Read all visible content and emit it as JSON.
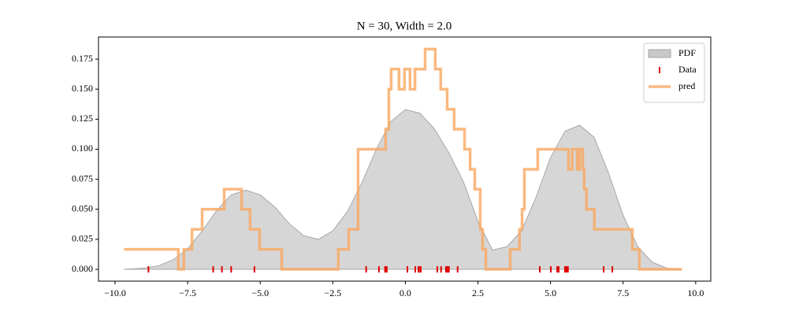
{
  "chart_data": {
    "type": "density",
    "title": "N = 30, Width = 2.0",
    "xlim": [
      -10.57,
      10.52
    ],
    "ylim": [
      -0.0098,
      0.1934
    ],
    "xticks": [
      {
        "value": -10,
        "label": "−10.0"
      },
      {
        "value": -7.5,
        "label": "−7.5"
      },
      {
        "value": -5,
        "label": "−5.0"
      },
      {
        "value": -2.5,
        "label": "−2.5"
      },
      {
        "value": 0,
        "label": "0.0"
      },
      {
        "value": 2.5,
        "label": "2.5"
      },
      {
        "value": 5,
        "label": "5.0"
      },
      {
        "value": 7.5,
        "label": "7.5"
      },
      {
        "value": 10,
        "label": "10.0"
      }
    ],
    "yticks": [
      {
        "value": 0,
        "label": "0.000"
      },
      {
        "value": 0.025,
        "label": "0.025"
      },
      {
        "value": 0.05,
        "label": "0.050"
      },
      {
        "value": 0.075,
        "label": "0.075"
      },
      {
        "value": 0.1,
        "label": "0.100"
      },
      {
        "value": 0.125,
        "label": "0.125"
      },
      {
        "value": 0.15,
        "label": "0.150"
      },
      {
        "value": 0.175,
        "label": "0.175"
      }
    ],
    "legend": "upper right",
    "series": [
      {
        "name": "PDF",
        "type": "area",
        "color": "#c8c8c8",
        "x": [
          -9.7,
          -9,
          -8.5,
          -8,
          -7.5,
          -7,
          -6.5,
          -6,
          -5.5,
          -5,
          -4.5,
          -4,
          -3.5,
          -3,
          -2.5,
          -2,
          -1.5,
          -1,
          -0.5,
          0,
          0.5,
          1,
          1.5,
          2,
          2.5,
          3,
          3.5,
          4,
          4.5,
          5,
          5.5,
          6,
          6.5,
          7,
          7.5,
          8,
          8.5,
          9,
          9.5
        ],
        "values": [
          0.0,
          0.001,
          0.003,
          0.008,
          0.017,
          0.032,
          0.049,
          0.062,
          0.066,
          0.062,
          0.052,
          0.038,
          0.028,
          0.025,
          0.032,
          0.048,
          0.072,
          0.1,
          0.123,
          0.133,
          0.13,
          0.117,
          0.097,
          0.073,
          0.04,
          0.016,
          0.019,
          0.032,
          0.06,
          0.093,
          0.115,
          0.12,
          0.11,
          0.08,
          0.045,
          0.019,
          0.006,
          0.001,
          0.0
        ]
      },
      {
        "name": "Data",
        "type": "rug",
        "color": "#e00000",
        "values": [
          -8.85,
          -6.62,
          -6.32,
          -6.0,
          -5.2,
          -1.35,
          -0.91,
          -0.7,
          -0.69,
          -0.64,
          0.07,
          0.34,
          0.45,
          0.47,
          0.53,
          1.1,
          1.23,
          1.4,
          1.45,
          1.5,
          1.8,
          4.63,
          5.01,
          5.23,
          5.28,
          5.5,
          5.55,
          5.6,
          6.83,
          7.13
        ]
      },
      {
        "name": "pred",
        "type": "step",
        "color": "#f9a860",
        "x": [
          -9.69,
          -7.82,
          -7.82,
          -7.63,
          -7.63,
          -7.35,
          -7.35,
          -7.0,
          -7.0,
          -6.24,
          -6.24,
          -5.64,
          -5.64,
          -5.35,
          -5.35,
          -5.02,
          -5.02,
          -4.26,
          -4.26,
          -2.31,
          -2.31,
          -1.95,
          -1.95,
          -1.63,
          -1.63,
          -0.68,
          -0.68,
          -0.57,
          -0.57,
          -0.49,
          -0.49,
          -0.22,
          -0.22,
          -0.03,
          -0.03,
          0.16,
          0.16,
          0.33,
          0.33,
          0.68,
          0.68,
          1.03,
          1.03,
          1.22,
          1.22,
          1.44,
          1.44,
          1.68,
          1.68,
          2.04,
          2.04,
          2.23,
          2.23,
          2.39,
          2.39,
          2.58,
          2.58,
          2.66,
          2.66,
          2.77,
          2.77,
          3.61,
          3.61,
          3.93,
          3.93,
          4.02,
          4.02,
          4.1,
          4.1,
          4.56,
          4.56,
          5.62,
          5.62,
          5.75,
          5.75,
          5.92,
          5.92,
          6.0,
          6.0,
          6.11,
          6.11,
          6.16,
          6.16,
          6.24,
          6.24,
          6.51,
          6.51,
          7.82,
          7.82,
          8.06,
          8.06,
          9.53
        ],
        "values": [
          0.0167,
          0.0167,
          0,
          0,
          0.0167,
          0.0167,
          0.0333,
          0.0333,
          0.05,
          0.05,
          0.0667,
          0.0667,
          0.05,
          0.05,
          0.0333,
          0.0333,
          0.0167,
          0.0167,
          0,
          0,
          0.0167,
          0.0167,
          0.0333,
          0.0333,
          0.1,
          0.1,
          0.1167,
          0.1167,
          0.15,
          0.15,
          0.1667,
          0.1667,
          0.15,
          0.15,
          0.1667,
          0.1667,
          0.15,
          0.15,
          0.1667,
          0.1667,
          0.1833,
          0.1833,
          0.1667,
          0.1667,
          0.15,
          0.15,
          0.1333,
          0.1333,
          0.1167,
          0.1167,
          0.1,
          0.1,
          0.0833,
          0.0833,
          0.0667,
          0.0667,
          0.0333,
          0.0333,
          0.0167,
          0.0167,
          0,
          0,
          0.0167,
          0.0167,
          0.0333,
          0.0333,
          0.05,
          0.05,
          0.0833,
          0.0833,
          0.1,
          0.1,
          0.0833,
          0.0833,
          0.1,
          0.1,
          0.0833,
          0.0833,
          0.1,
          0.1,
          0.0833,
          0.0833,
          0.0667,
          0.0667,
          0.05,
          0.05,
          0.0333,
          0.0333,
          0.0167,
          0.0167,
          0,
          0
        ]
      }
    ]
  }
}
